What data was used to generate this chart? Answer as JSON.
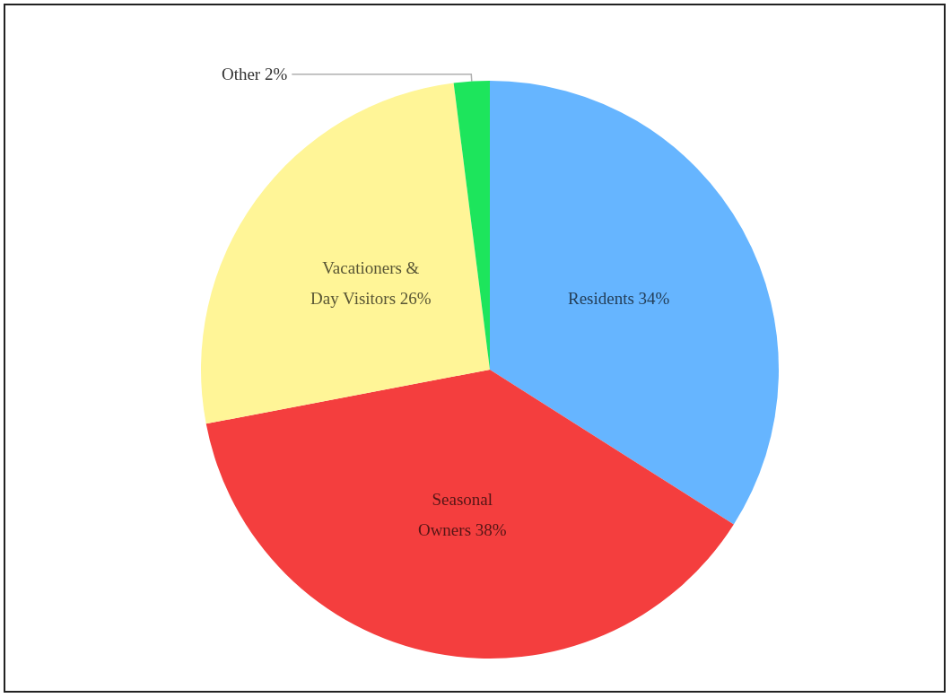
{
  "chart_data": {
    "type": "pie",
    "categories": [
      "Residents",
      "Seasonal Owners",
      "Vacationers & Day Visitors",
      "Other"
    ],
    "values": [
      34,
      38,
      26,
      2
    ],
    "value_labels": [
      "34%",
      "38%",
      "26%",
      "2%"
    ],
    "colors": [
      "#66b5ff",
      "#f43e3e",
      "#fff597",
      "#1de55c"
    ],
    "legend": false
  }
}
